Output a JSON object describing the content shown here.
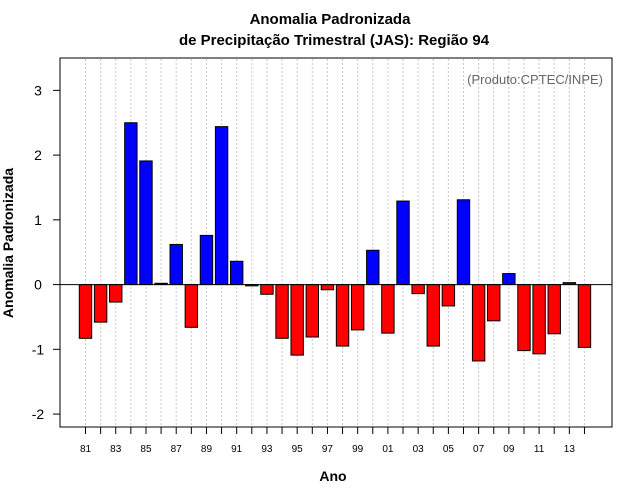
{
  "chart_data": {
    "type": "bar",
    "title": "Anomalia Padronizada",
    "subtitle": "de Precipitação Trimestral (JAS): Região 94",
    "xlabel": "Ano",
    "ylabel": "Anomalia Padronizada",
    "credit": "(Produto:CPTEC/INPE)",
    "ylim": [
      -2.2,
      3.5
    ],
    "yticks": [
      -2,
      -1,
      0,
      1,
      2,
      3
    ],
    "grid": "vertical dashed",
    "categories": [
      "1981",
      "1982",
      "1983",
      "1984",
      "1985",
      "1986",
      "1987",
      "1988",
      "1989",
      "1990",
      "1991",
      "1992",
      "1993",
      "1994",
      "1995",
      "1996",
      "1997",
      "1998",
      "1999",
      "2000",
      "2001",
      "2002",
      "2003",
      "2004",
      "2005",
      "2006",
      "2007",
      "2008",
      "2009",
      "2010",
      "2011",
      "2012",
      "2013",
      "2014"
    ],
    "tick_labels": [
      "81",
      "83",
      "85",
      "87",
      "89",
      "91",
      "93",
      "95",
      "97",
      "99",
      "01",
      "03",
      "05",
      "07",
      "09",
      "11",
      "13"
    ],
    "values": [
      -0.83,
      -0.58,
      -0.27,
      2.5,
      1.91,
      0.02,
      0.62,
      -0.66,
      0.76,
      2.44,
      0.36,
      -0.02,
      -0.15,
      -0.83,
      -1.09,
      -0.81,
      -0.08,
      -0.95,
      -0.7,
      0.53,
      -0.75,
      1.29,
      -0.14,
      -0.95,
      -0.33,
      1.31,
      -1.18,
      -0.56,
      0.17,
      -1.02,
      -1.07,
      -0.76,
      0.03,
      -0.97
    ],
    "colors": {
      "positive": "#0000ff",
      "negative": "#ff0000"
    }
  }
}
